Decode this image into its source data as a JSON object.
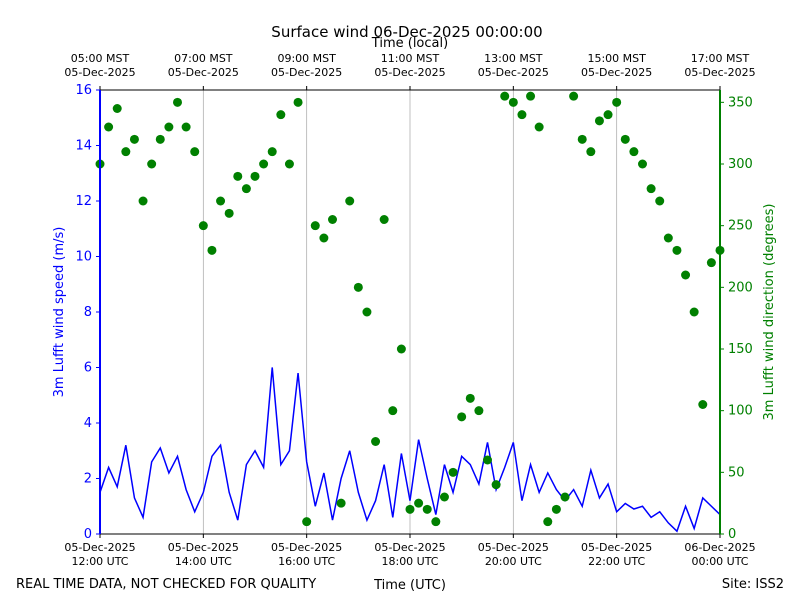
{
  "chart_data": {
    "type": "line",
    "title": "Surface wind 06-Dec-2025 00:00:00",
    "x2label": "Time (local)",
    "xlabel": "Time (UTC)",
    "ylabel": "3m Lufft wind speed (m/s)",
    "y2label": "3m Lufft wind direction (degrees)",
    "note": "REAL TIME DATA, NOT CHECKED FOR QUALITY",
    "site": "Site: ISS2",
    "grid": true,
    "xlim": [
      "2025-12-05T12:00",
      "2025-12-06T00:00"
    ],
    "xticks": [
      {
        "value": "2025-12-05T12:00",
        "label": "05-Dec-2025\n12:00 UTC"
      },
      {
        "value": "2025-12-05T14:00",
        "label": "05-Dec-2025\n14:00 UTC"
      },
      {
        "value": "2025-12-05T16:00",
        "label": "05-Dec-2025\n16:00 UTC"
      },
      {
        "value": "2025-12-05T18:00",
        "label": "05-Dec-2025\n18:00 UTC"
      },
      {
        "value": "2025-12-05T20:00",
        "label": "05-Dec-2025\n20:00 UTC"
      },
      {
        "value": "2025-12-05T22:00",
        "label": "05-Dec-2025\n22:00 UTC"
      },
      {
        "value": "2025-12-06T00:00",
        "label": "06-Dec-2025\n00:00 UTC"
      }
    ],
    "x2ticks": [
      {
        "value": "2025-12-05T12:00",
        "label": "05:00 MST\n05-Dec-2025"
      },
      {
        "value": "2025-12-05T14:00",
        "label": "07:00 MST\n05-Dec-2025"
      },
      {
        "value": "2025-12-05T16:00",
        "label": "09:00 MST\n05-Dec-2025"
      },
      {
        "value": "2025-12-05T18:00",
        "label": "11:00 MST\n05-Dec-2025"
      },
      {
        "value": "2025-12-05T20:00",
        "label": "13:00 MST\n05-Dec-2025"
      },
      {
        "value": "2025-12-05T22:00",
        "label": "15:00 MST\n05-Dec-2025"
      },
      {
        "value": "2025-12-06T00:00",
        "label": "17:00 MST\n05-Dec-2025"
      }
    ],
    "ylim": [
      0,
      16
    ],
    "yticks": [
      0,
      2,
      4,
      6,
      8,
      10,
      12,
      14,
      16
    ],
    "y2lim": [
      0,
      360
    ],
    "y2ticks": [
      0,
      50,
      100,
      150,
      200,
      250,
      300,
      350
    ],
    "x": [
      "2025-12-05T12:00",
      "2025-12-05T12:10",
      "2025-12-05T12:20",
      "2025-12-05T12:30",
      "2025-12-05T12:40",
      "2025-12-05T12:50",
      "2025-12-05T13:00",
      "2025-12-05T13:10",
      "2025-12-05T13:20",
      "2025-12-05T13:30",
      "2025-12-05T13:40",
      "2025-12-05T13:50",
      "2025-12-05T14:00",
      "2025-12-05T14:10",
      "2025-12-05T14:20",
      "2025-12-05T14:30",
      "2025-12-05T14:40",
      "2025-12-05T14:50",
      "2025-12-05T15:00",
      "2025-12-05T15:10",
      "2025-12-05T15:20",
      "2025-12-05T15:30",
      "2025-12-05T15:40",
      "2025-12-05T15:50",
      "2025-12-05T16:00",
      "2025-12-05T16:10",
      "2025-12-05T16:20",
      "2025-12-05T16:30",
      "2025-12-05T16:40",
      "2025-12-05T16:50",
      "2025-12-05T17:00",
      "2025-12-05T17:10",
      "2025-12-05T17:20",
      "2025-12-05T17:30",
      "2025-12-05T17:40",
      "2025-12-05T17:50",
      "2025-12-05T18:00",
      "2025-12-05T18:10",
      "2025-12-05T18:20",
      "2025-12-05T18:30",
      "2025-12-05T18:40",
      "2025-12-05T18:50",
      "2025-12-05T19:00",
      "2025-12-05T19:10",
      "2025-12-05T19:20",
      "2025-12-05T19:30",
      "2025-12-05T19:40",
      "2025-12-05T19:50",
      "2025-12-05T20:00",
      "2025-12-05T20:10",
      "2025-12-05T20:20",
      "2025-12-05T20:30",
      "2025-12-05T20:40",
      "2025-12-05T20:50",
      "2025-12-05T21:00",
      "2025-12-05T21:10",
      "2025-12-05T21:20",
      "2025-12-05T21:30",
      "2025-12-05T21:40",
      "2025-12-05T21:50",
      "2025-12-05T22:00",
      "2025-12-05T22:10",
      "2025-12-05T22:20",
      "2025-12-05T22:30",
      "2025-12-05T22:40",
      "2025-12-05T22:50",
      "2025-12-05T23:00",
      "2025-12-05T23:10",
      "2025-12-05T23:20",
      "2025-12-05T23:30",
      "2025-12-05T23:40",
      "2025-12-05T23:50",
      "2025-12-06T00:00"
    ],
    "series": [
      {
        "type": "line",
        "axis": "y",
        "color": "#0000ff",
        "values": [
          1.5,
          2.4,
          1.7,
          3.2,
          1.3,
          0.6,
          2.6,
          3.1,
          2.2,
          2.8,
          1.6,
          0.8,
          1.5,
          2.8,
          3.2,
          1.5,
          0.5,
          2.5,
          3.0,
          2.4,
          6.0,
          2.5,
          3.0,
          5.8,
          2.6,
          1.0,
          2.2,
          0.5,
          2.0,
          3.0,
          1.5,
          0.5,
          1.2,
          2.5,
          0.6,
          2.9,
          1.2,
          3.4,
          2.0,
          0.7,
          2.5,
          1.5,
          2.8,
          2.5,
          1.8,
          3.3,
          1.6,
          2.4,
          3.3,
          1.2,
          2.5,
          1.5,
          2.2,
          1.6,
          1.2,
          1.6,
          1.0,
          2.3,
          1.3,
          1.8,
          0.8,
          1.1,
          0.9,
          1.0,
          0.6,
          0.8,
          0.4,
          0.1,
          1.0,
          0.2,
          1.3,
          1.0,
          0.7
        ]
      },
      {
        "type": "scatter",
        "axis": "y2",
        "color": "#008000",
        "values": [
          300,
          330,
          345,
          310,
          320,
          270,
          300,
          320,
          330,
          350,
          330,
          310,
          250,
          230,
          270,
          260,
          290,
          280,
          290,
          300,
          310,
          340,
          300,
          350,
          10,
          250,
          240,
          255,
          25,
          270,
          200,
          180,
          75,
          255,
          100,
          150,
          20,
          25,
          20,
          10,
          30,
          50,
          95,
          110,
          100,
          60,
          40,
          355,
          350,
          340,
          355,
          330,
          10,
          20,
          30,
          355,
          320,
          310,
          335,
          340,
          350,
          320,
          310,
          300,
          280,
          270,
          240,
          230,
          210,
          180,
          105,
          220,
          230
        ]
      }
    ]
  }
}
